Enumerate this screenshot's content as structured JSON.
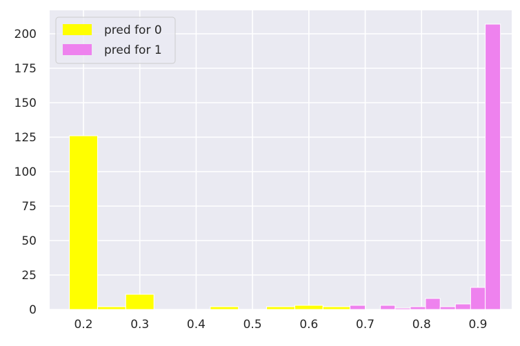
{
  "chart_data": {
    "type": "bar",
    "subtype": "overlaid histogram",
    "title": "",
    "xlabel": "",
    "ylabel": "",
    "xlim": [
      0.14,
      0.96
    ],
    "ylim": [
      0,
      217
    ],
    "xticks": [
      "0.2",
      "0.3",
      "0.4",
      "0.5",
      "0.6",
      "0.7",
      "0.8",
      "0.9"
    ],
    "yticks": [
      "0",
      "25",
      "50",
      "75",
      "100",
      "125",
      "150",
      "175",
      "200"
    ],
    "grid": true,
    "legend_position": "upper-left",
    "series": [
      {
        "name": "pred for 0",
        "color": "#ffff00",
        "bins": [
          {
            "x0": 0.175,
            "x1": 0.225,
            "count": 126
          },
          {
            "x0": 0.225,
            "x1": 0.275,
            "count": 2
          },
          {
            "x0": 0.275,
            "x1": 0.325,
            "count": 11
          },
          {
            "x0": 0.325,
            "x1": 0.375,
            "count": 0
          },
          {
            "x0": 0.375,
            "x1": 0.425,
            "count": 0
          },
          {
            "x0": 0.425,
            "x1": 0.475,
            "count": 2
          },
          {
            "x0": 0.475,
            "x1": 0.525,
            "count": 0
          },
          {
            "x0": 0.525,
            "x1": 0.575,
            "count": 2
          },
          {
            "x0": 0.575,
            "x1": 0.625,
            "count": 3
          },
          {
            "x0": 0.625,
            "x1": 0.675,
            "count": 2
          }
        ]
      },
      {
        "name": "pred for 1",
        "color": "#ee82ee",
        "bins": [
          {
            "x0": 0.673,
            "x1": 0.7,
            "count": 3
          },
          {
            "x0": 0.7,
            "x1": 0.727,
            "count": 0
          },
          {
            "x0": 0.727,
            "x1": 0.753,
            "count": 3
          },
          {
            "x0": 0.753,
            "x1": 0.78,
            "count": 1
          },
          {
            "x0": 0.78,
            "x1": 0.807,
            "count": 2
          },
          {
            "x0": 0.807,
            "x1": 0.833,
            "count": 8
          },
          {
            "x0": 0.833,
            "x1": 0.86,
            "count": 2
          },
          {
            "x0": 0.86,
            "x1": 0.887,
            "count": 4
          },
          {
            "x0": 0.887,
            "x1": 0.913,
            "count": 16
          },
          {
            "x0": 0.913,
            "x1": 0.94,
            "count": 207
          }
        ]
      }
    ]
  }
}
